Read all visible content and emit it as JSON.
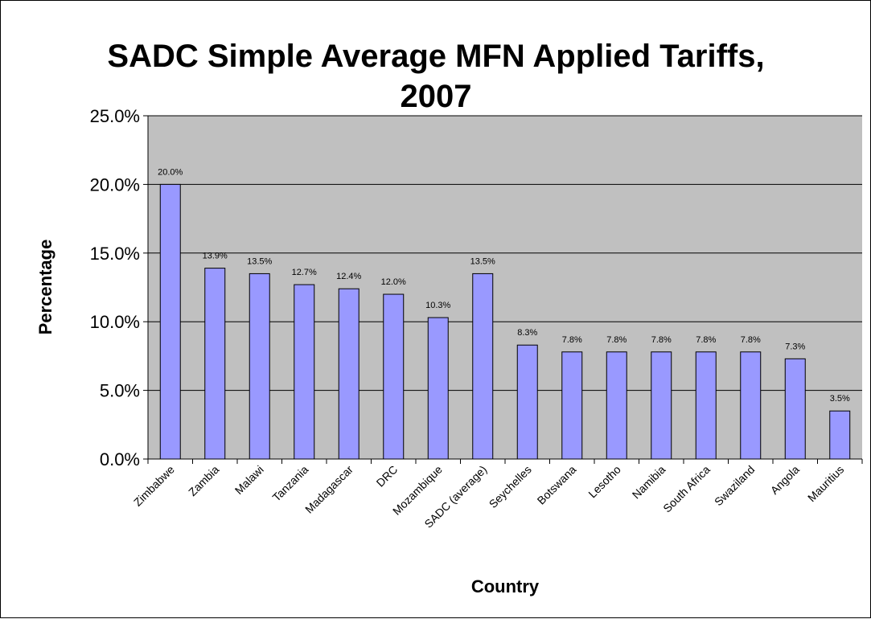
{
  "chart_data": {
    "type": "bar",
    "title_lines": [
      "SADC Simple Average MFN Applied Tariffs,",
      "2007"
    ],
    "xlabel": "Country",
    "ylabel": "Percentage",
    "ylim": [
      0,
      25
    ],
    "yticks": [
      "0.0%",
      "5.0%",
      "10.0%",
      "15.0%",
      "20.0%",
      "25.0%"
    ],
    "grid": true,
    "legend": "none",
    "categories": [
      "Zimbabwe",
      "Zambia",
      "Malawi",
      "Tanzania",
      "Madagascar",
      "DRC",
      "Mozambique",
      "SADC (average)",
      "Seychelles",
      "Botswana",
      "Lesotho",
      "Namibia",
      "South Africa",
      "Swaziland",
      "Angola",
      "Mauritius"
    ],
    "values": [
      20.0,
      13.9,
      13.5,
      12.7,
      12.4,
      12.0,
      10.3,
      13.5,
      8.3,
      7.8,
      7.8,
      7.8,
      7.8,
      7.8,
      7.3,
      3.5
    ],
    "data_labels": [
      "20.0%",
      "13.9%",
      "13.5%",
      "12.7%",
      "12.4%",
      "12.0%",
      "10.3%",
      "13.5%",
      "8.3%",
      "7.8%",
      "7.8%",
      "7.8%",
      "7.8%",
      "7.8%",
      "7.3%",
      "3.5%"
    ],
    "colors": {
      "bar_fill": "#9999ff",
      "bar_stroke": "#000000",
      "plot_bg": "#c0c0c0",
      "grid": "#000000"
    }
  }
}
